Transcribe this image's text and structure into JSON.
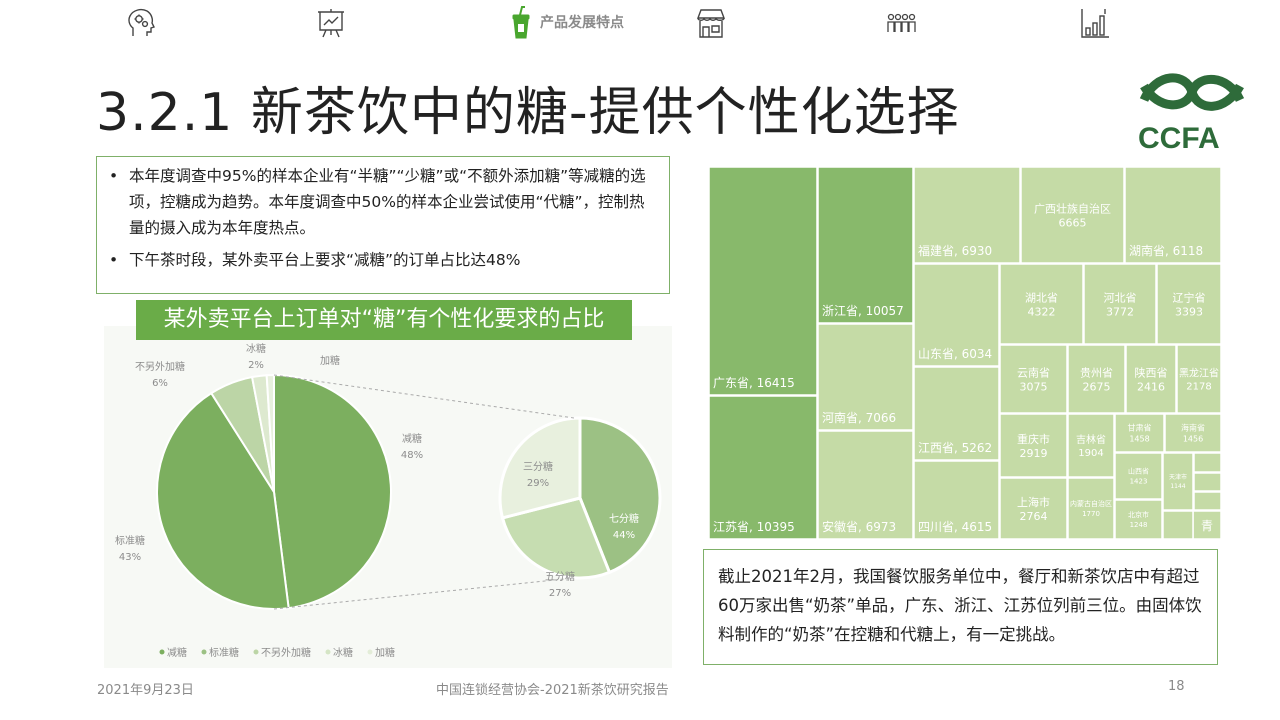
{
  "nav": {
    "active_label": "产品发展特点",
    "icons": [
      "head-gears-icon",
      "presentation-board-icon",
      "drink-cup-icon",
      "storefront-icon",
      "people-group-icon",
      "bar-chart-icon"
    ]
  },
  "title": "3.2.1 新茶饮中的糖-提供个性化选择",
  "logo_text": "CCFA",
  "bullets": [
    "本年度调查中95%的样本企业有“半糖”“少糖”或“不额外添加糖”等减糖的选项，控糖成为趋势。本年度调查中50%的样本企业尝试使用“代糖”，控制热量的摄入成为本年度热点。",
    "下午茶时段，某外卖平台上要求“减糖”的订单占比达48%"
  ],
  "colors": {
    "accent": "#6aac48",
    "border": "#7fb069",
    "treemap_dark": "#88b96b",
    "treemap_light": "#c5dba6"
  },
  "chart_data": [
    {
      "type": "pie",
      "title": "某外卖平台上订单对“糖”有个性化要求的占比",
      "slices": [
        {
          "label": "减糖",
          "pct_label": "48%",
          "value": 48
        },
        {
          "label": "标准糖",
          "pct_label": "43%",
          "value": 43
        },
        {
          "label": "不另外加糖",
          "pct_label": "6%",
          "value": 6
        },
        {
          "label": "冰糖",
          "pct_label": "2%",
          "value": 2
        },
        {
          "label": "加糖",
          "pct_label": "",
          "value": 1
        }
      ],
      "legend": [
        "减糖",
        "标准糖",
        "不另外加糖",
        "冰糖",
        "加糖"
      ],
      "legend_position": "bottom",
      "breakout": {
        "of": "减糖",
        "slices": [
          {
            "label": "七分糖",
            "pct_label": "44%",
            "value": 44
          },
          {
            "label": "五分糖",
            "pct_label": "27%",
            "value": 27
          },
          {
            "label": "三分糖",
            "pct_label": "29%",
            "value": 29
          }
        ]
      }
    },
    {
      "type": "treemap",
      "items": [
        {
          "name": "广东省",
          "value": 16415,
          "label": "广东省, 16415"
        },
        {
          "name": "江苏省",
          "value": 10395,
          "label": "江苏省, 10395"
        },
        {
          "name": "浙江省",
          "value": 10057,
          "label": "浙江省, 10057"
        },
        {
          "name": "河南省",
          "value": 7066,
          "label": "河南省, 7066"
        },
        {
          "name": "安徽省",
          "value": 6973,
          "label": "安徽省, 6973"
        },
        {
          "name": "福建省",
          "value": 6930,
          "label": "福建省, 6930"
        },
        {
          "name": "广西壮族自治区",
          "value": 6665,
          "label": "广西壮族自治区, 6665"
        },
        {
          "name": "湖南省",
          "value": 6118,
          "label": "湖南省, 6118"
        },
        {
          "name": "山东省",
          "value": 6034,
          "label": "山东省, 6034"
        },
        {
          "name": "江西省",
          "value": 5262,
          "label": "江西省, 5262"
        },
        {
          "name": "四川省",
          "value": 4615,
          "label": "四川省, 4615"
        },
        {
          "name": "湖北省",
          "value": 4322,
          "label": "湖北省, 4322"
        },
        {
          "name": "河北省",
          "value": 3772,
          "label": "河北省, 3772"
        },
        {
          "name": "辽宁省",
          "value": 3393,
          "label": "辽宁省, 3393"
        },
        {
          "name": "云南省",
          "value": 3075,
          "label": "云南省, 3075"
        },
        {
          "name": "贵州省",
          "value": 2675,
          "label": "贵州省, 2675"
        },
        {
          "name": "陕西省",
          "value": 2416,
          "label": "陕西省, 2416"
        },
        {
          "name": "黑龙江省",
          "value": 2178,
          "label": "黑龙江省, 2178"
        },
        {
          "name": "重庆市",
          "value": 2919,
          "label": "重庆市, 2919"
        },
        {
          "name": "上海市",
          "value": 2764,
          "label": "上海市, 2764"
        },
        {
          "name": "吉林省",
          "value": 1904,
          "label": "吉林省, 1904"
        },
        {
          "name": "甘肃省",
          "value": 1458,
          "label": "甘肃省, 1458"
        },
        {
          "name": "海南省",
          "value": 1456,
          "label": "海南省, 1456"
        },
        {
          "name": "山西省",
          "value": 1423,
          "label": "山西省, 1423"
        },
        {
          "name": "内蒙古自治区",
          "value": 1770,
          "label": "内蒙古自治区, 1770"
        },
        {
          "name": "北京市",
          "value": 1248,
          "label": "北京市, 1248"
        },
        {
          "name": "天津市",
          "value": 1144,
          "label": "天津市, 1144"
        },
        {
          "name": "青",
          "value": null,
          "label": "青"
        }
      ]
    }
  ],
  "summary": "截止2021年2月，我国餐饮服务单位中，餐厅和新茶饮店中有超过60万家出售“奶茶”单品，广东、浙江、江苏位列前三位。由固体饮料制作的“奶茶”在控糖和代糖上，有一定挑战。",
  "footer": {
    "date": "2021年9月23日",
    "source": "中国连锁经营协会-2021新茶饮研究报告",
    "page": "18"
  }
}
